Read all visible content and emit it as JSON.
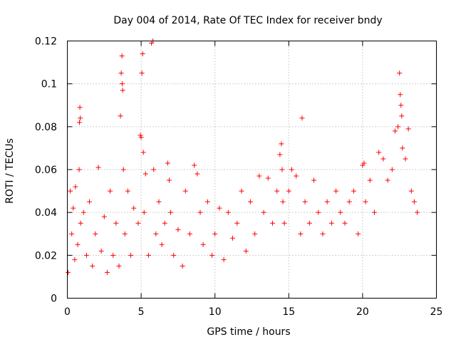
{
  "chart_data": {
    "type": "scatter",
    "title": "Day 004 of 2014, Rate Of TEC Index for receiver bndy",
    "xlabel": "GPS time / hours",
    "ylabel": "ROTI / TECUs",
    "xlim": [
      0,
      25
    ],
    "ylim": [
      0,
      0.12
    ],
    "xticks": [
      0,
      5,
      10,
      15,
      20,
      25
    ],
    "yticks": [
      0,
      0.02,
      0.04,
      0.06,
      0.08,
      0.1,
      0.12
    ],
    "xtick_labels": [
      "0",
      "5",
      "10",
      "15",
      "20",
      "25"
    ],
    "ytick_labels": [
      "0",
      "0.02",
      "0.04",
      "0.06",
      "0.08",
      "0.1",
      "0.12"
    ],
    "grid": true,
    "marker": "+",
    "color": "#ff0000",
    "series": [
      {
        "name": "ROTI",
        "x": [
          0.05,
          0.2,
          0.3,
          0.4,
          0.5,
          0.55,
          0.7,
          0.8,
          0.82,
          0.85,
          0.88,
          0.9,
          1.1,
          1.3,
          1.5,
          1.7,
          1.9,
          2.1,
          2.3,
          2.5,
          2.7,
          2.9,
          3.1,
          3.3,
          3.5,
          3.6,
          3.65,
          3.7,
          3.72,
          3.75,
          3.8,
          3.9,
          4.1,
          4.3,
          4.5,
          4.8,
          4.95,
          5.0,
          5.05,
          5.1,
          5.15,
          5.2,
          5.3,
          5.5,
          5.7,
          5.8,
          5.85,
          6.0,
          6.2,
          6.4,
          6.6,
          6.8,
          6.9,
          7.0,
          7.2,
          7.5,
          7.8,
          8.0,
          8.3,
          8.6,
          8.8,
          9.0,
          9.2,
          9.5,
          9.8,
          10.0,
          10.3,
          10.6,
          10.9,
          11.2,
          11.5,
          11.8,
          12.1,
          12.4,
          12.7,
          13.0,
          13.3,
          13.6,
          13.9,
          14.2,
          14.4,
          14.5,
          14.55,
          14.6,
          14.7,
          15.0,
          15.2,
          15.5,
          15.8,
          15.9,
          16.1,
          16.4,
          16.7,
          17.0,
          17.3,
          17.6,
          17.9,
          18.2,
          18.5,
          18.8,
          19.1,
          19.4,
          19.7,
          20.0,
          20.1,
          20.2,
          20.5,
          20.8,
          21.1,
          21.4,
          21.7,
          22.0,
          22.2,
          22.4,
          22.5,
          22.55,
          22.6,
          22.65,
          22.7,
          22.9,
          23.1,
          23.3,
          23.5,
          23.7
        ],
        "y": [
          0.012,
          0.05,
          0.03,
          0.042,
          0.018,
          0.052,
          0.025,
          0.06,
          0.082,
          0.089,
          0.084,
          0.035,
          0.04,
          0.02,
          0.045,
          0.015,
          0.03,
          0.061,
          0.022,
          0.038,
          0.012,
          0.05,
          0.02,
          0.035,
          0.015,
          0.085,
          0.105,
          0.113,
          0.1,
          0.097,
          0.06,
          0.03,
          0.05,
          0.02,
          0.042,
          0.035,
          0.076,
          0.075,
          0.105,
          0.114,
          0.068,
          0.04,
          0.058,
          0.02,
          0.119,
          0.12,
          0.06,
          0.03,
          0.045,
          0.025,
          0.035,
          0.063,
          0.055,
          0.04,
          0.02,
          0.032,
          0.015,
          0.05,
          0.03,
          0.062,
          0.058,
          0.04,
          0.025,
          0.045,
          0.02,
          0.03,
          0.042,
          0.018,
          0.04,
          0.028,
          0.035,
          0.05,
          0.022,
          0.045,
          0.03,
          0.057,
          0.04,
          0.056,
          0.035,
          0.05,
          0.067,
          0.072,
          0.06,
          0.045,
          0.035,
          0.05,
          0.06,
          0.057,
          0.03,
          0.084,
          0.045,
          0.035,
          0.055,
          0.04,
          0.03,
          0.045,
          0.035,
          0.05,
          0.04,
          0.035,
          0.045,
          0.05,
          0.03,
          0.062,
          0.063,
          0.045,
          0.055,
          0.04,
          0.068,
          0.065,
          0.055,
          0.06,
          0.078,
          0.08,
          0.105,
          0.095,
          0.09,
          0.085,
          0.07,
          0.065,
          0.079,
          0.05,
          0.045,
          0.04
        ]
      }
    ]
  }
}
